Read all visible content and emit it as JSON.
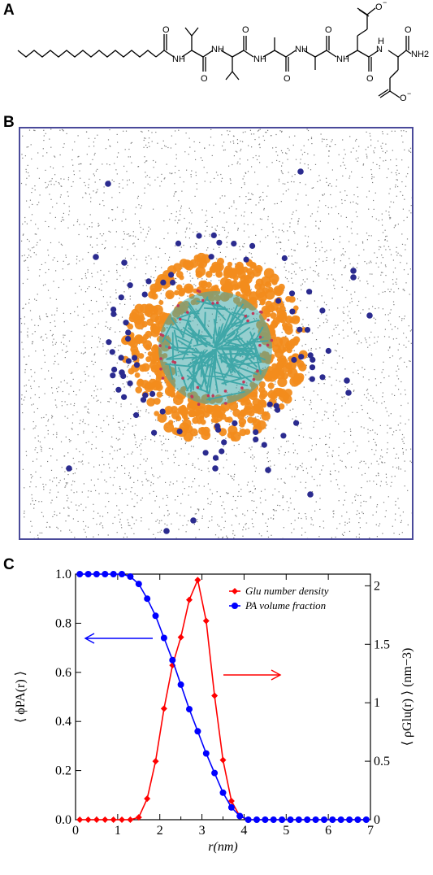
{
  "panel_labels": {
    "a": "A",
    "b": "B",
    "c": "C"
  },
  "molecule": {
    "labels": [
      "O",
      "O",
      "O",
      "O",
      "O",
      "O",
      "O",
      "NH",
      "NH",
      "NH",
      "NH",
      "NH",
      "N",
      "H",
      "NH2",
      "O",
      "O"
    ],
    "superscripts": [
      "−",
      "−"
    ]
  },
  "simulation": {
    "colors": {
      "frame": "#4a4a9a",
      "water": "#7a7a7a",
      "ion": "#2b2b8f",
      "core": "#3fa7a8",
      "shell": "#f28c1c"
    }
  },
  "chart_data": {
    "type": "line",
    "xlabel": "r(nm)",
    "ylabel_left": "⟨ ϕPA(r) ⟩",
    "ylabel_right": "⟨ ρGlu(r) ⟩ (nm−3)",
    "xlim": [
      0,
      7
    ],
    "ylim_left": [
      0,
      1.0
    ],
    "ylim_right": [
      0,
      2.1
    ],
    "x_ticks": [
      "0",
      "1",
      "2",
      "3",
      "4",
      "5",
      "6",
      "7"
    ],
    "y_left_ticks": [
      "0.0",
      "0.2",
      "0.4",
      "0.6",
      "0.8",
      "1.0"
    ],
    "y_right_ticks": [
      "0",
      "0.5",
      "1",
      "1.5",
      "2"
    ],
    "legend_position": "top-right",
    "series": [
      {
        "name": "Glu number density",
        "axis": "right",
        "color": "#ff0000",
        "marker": "diamond",
        "x": [
          0.1,
          0.3,
          0.5,
          0.7,
          0.9,
          1.1,
          1.3,
          1.5,
          1.7,
          1.9,
          2.1,
          2.3,
          2.5,
          2.7,
          2.9,
          3.1,
          3.3,
          3.5,
          3.7,
          3.9,
          4.1,
          4.3,
          4.5,
          4.7,
          4.9,
          5.1,
          5.3,
          5.5,
          5.7,
          5.9,
          6.1,
          6.3,
          6.5,
          6.7,
          6.9
        ],
        "values": [
          0,
          0,
          0,
          0,
          0,
          0,
          0,
          0.02,
          0.18,
          0.5,
          0.95,
          1.32,
          1.56,
          1.88,
          2.05,
          1.7,
          1.06,
          0.51,
          0.16,
          0.03,
          0,
          0,
          0,
          0,
          0,
          0,
          0,
          0,
          0,
          0,
          0,
          0,
          0,
          0,
          0
        ]
      },
      {
        "name": "PA volume fraction",
        "axis": "left",
        "color": "#0000ff",
        "marker": "circle",
        "x": [
          0.1,
          0.3,
          0.5,
          0.7,
          0.9,
          1.1,
          1.3,
          1.5,
          1.7,
          1.9,
          2.1,
          2.3,
          2.5,
          2.7,
          2.9,
          3.1,
          3.3,
          3.5,
          3.7,
          3.9,
          4.1,
          4.3,
          4.5,
          4.7,
          4.9,
          5.1,
          5.3,
          5.5,
          5.7,
          5.9,
          6.1,
          6.3,
          6.5,
          6.7,
          6.9
        ],
        "values": [
          1.0,
          1.0,
          1.0,
          1.0,
          1.0,
          1.0,
          0.99,
          0.96,
          0.9,
          0.83,
          0.74,
          0.65,
          0.55,
          0.45,
          0.36,
          0.27,
          0.19,
          0.11,
          0.05,
          0.015,
          0,
          0,
          0,
          0,
          0,
          0,
          0,
          0,
          0,
          0,
          0,
          0,
          0,
          0,
          0
        ]
      }
    ],
    "annotations": [
      {
        "type": "arrow",
        "color": "#0000ff",
        "direction": "left"
      },
      {
        "type": "arrow",
        "color": "#ff0000",
        "direction": "right"
      }
    ]
  }
}
